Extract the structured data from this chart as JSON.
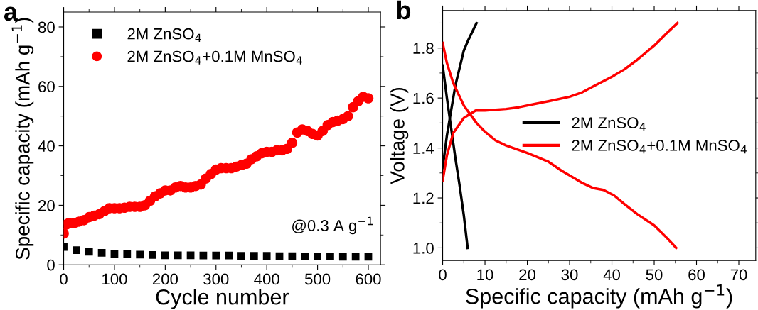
{
  "chart_data": [
    {
      "type": "scatter",
      "title": "a",
      "xlabel": "Cycle number",
      "ylabel": "Specific capacity (mAh g$^{−1}$)",
      "annotations": [
        "@0.3 A g$^{−1}$"
      ],
      "xlim": [
        0,
        624
      ],
      "ylim": [
        0,
        85
      ],
      "xticks": [
        0,
        100,
        200,
        300,
        400,
        500,
        600
      ],
      "yticks": [
        0,
        20,
        40,
        60,
        80
      ],
      "grid": false,
      "legend": "top left",
      "series": [
        {
          "name": "2M ZnSO$_{4}$",
          "color": "#000000",
          "marker": "square",
          "x": [
            0,
            25,
            50,
            75,
            100,
            125,
            150,
            175,
            200,
            225,
            250,
            275,
            300,
            325,
            350,
            375,
            400,
            425,
            450,
            475,
            500,
            525,
            550,
            575,
            600
          ],
          "values": [
            6,
            4.9,
            4.4,
            4.0,
            3.7,
            3.6,
            3.4,
            3.3,
            3.2,
            3.2,
            3.2,
            3.1,
            3.1,
            3.1,
            3.0,
            3.0,
            3.0,
            2.9,
            2.9,
            2.8,
            2.8,
            2.8,
            2.7,
            2.7,
            2.7
          ]
        },
        {
          "name": "2M ZnSO$_{4}$+0.1M MnSO$_{4}$",
          "color": "#ff0000",
          "marker": "circle",
          "x": [
            0,
            5,
            10,
            20,
            30,
            40,
            50,
            60,
            70,
            80,
            90,
            100,
            110,
            120,
            130,
            140,
            150,
            160,
            170,
            180,
            190,
            200,
            210,
            220,
            230,
            240,
            250,
            260,
            270,
            280,
            290,
            300,
            310,
            320,
            330,
            340,
            350,
            360,
            370,
            380,
            390,
            400,
            410,
            420,
            430,
            440,
            450,
            460,
            470,
            480,
            490,
            500,
            510,
            520,
            530,
            540,
            550,
            560,
            570,
            580,
            590,
            600
          ],
          "values": [
            10.5,
            13.5,
            14,
            14,
            14.5,
            15,
            16,
            16.5,
            17,
            18,
            19,
            19,
            19,
            19.2,
            19.5,
            19.5,
            19.5,
            20,
            21.5,
            23,
            24,
            25,
            25,
            26,
            26.5,
            26,
            26,
            26.5,
            27,
            29,
            30.5,
            32,
            32.5,
            32.5,
            32.5,
            33,
            33.5,
            34,
            35.5,
            36.5,
            37.5,
            38,
            38,
            38.5,
            38.5,
            39,
            41,
            44.5,
            45.5,
            45,
            44,
            43.5,
            45,
            47,
            48,
            48.5,
            49,
            50,
            53,
            55,
            56.5,
            56
          ]
        }
      ]
    },
    {
      "type": "line",
      "title": "b",
      "xlabel": "Specific capacity (mAh g$^{−1}$)",
      "ylabel": "Voltage (V)",
      "xlim": [
        0,
        74
      ],
      "ylim": [
        0.95,
        1.95
      ],
      "xticks": [
        0,
        10,
        20,
        30,
        40,
        50,
        60,
        70
      ],
      "yticks": [
        {
          "value": 1.0,
          "label": "1.0"
        },
        {
          "value": 1.2,
          "label": "1.2"
        },
        {
          "value": 1.4,
          "label": "1.4"
        },
        {
          "value": 1.6,
          "label": "1.6"
        },
        {
          "value": 1.8,
          "label": "1.8"
        }
      ],
      "grid": false,
      "legend": "right",
      "line_style": "solid",
      "marker": "none",
      "series": [
        {
          "name": "2M ZnSO$_{4}$",
          "color": "#000000",
          "x": [
            0,
            1,
            2,
            3,
            5,
            6,
            8
          ],
          "values": [
            1.32,
            1.45,
            1.55,
            1.65,
            1.79,
            1.83,
            1.9
          ]
        },
        {
          "color": "#000000",
          "x": [
            0,
            1,
            2,
            3,
            4,
            5,
            5.9
          ],
          "values": [
            1.73,
            1.6,
            1.48,
            1.36,
            1.25,
            1.13,
            1.0
          ]
        },
        {
          "name": "2M ZnSO$_{4}$+0.1M MnSO$_{4}$",
          "color": "#ff0000",
          "x": [
            0,
            1,
            2.5,
            5,
            7.8,
            10,
            15,
            18,
            22,
            25,
            30,
            33,
            36,
            40,
            43,
            46,
            50,
            53,
            55.5
          ],
          "values": [
            1.27,
            1.37,
            1.46,
            1.52,
            1.55,
            1.55,
            1.556,
            1.563,
            1.577,
            1.587,
            1.605,
            1.623,
            1.65,
            1.685,
            1.715,
            1.753,
            1.81,
            1.86,
            1.9
          ]
        },
        {
          "color": "#ff0000",
          "x": [
            0,
            1,
            2.5,
            5,
            8,
            10,
            12.5,
            15,
            20,
            25,
            28,
            30,
            33,
            35.5,
            38,
            40.5,
            43,
            46,
            50,
            53,
            55.2
          ],
          "values": [
            1.82,
            1.74,
            1.66,
            1.57,
            1.5,
            1.465,
            1.43,
            1.41,
            1.38,
            1.345,
            1.31,
            1.29,
            1.26,
            1.24,
            1.232,
            1.21,
            1.175,
            1.135,
            1.09,
            1.04,
            1.0
          ]
        }
      ]
    }
  ]
}
